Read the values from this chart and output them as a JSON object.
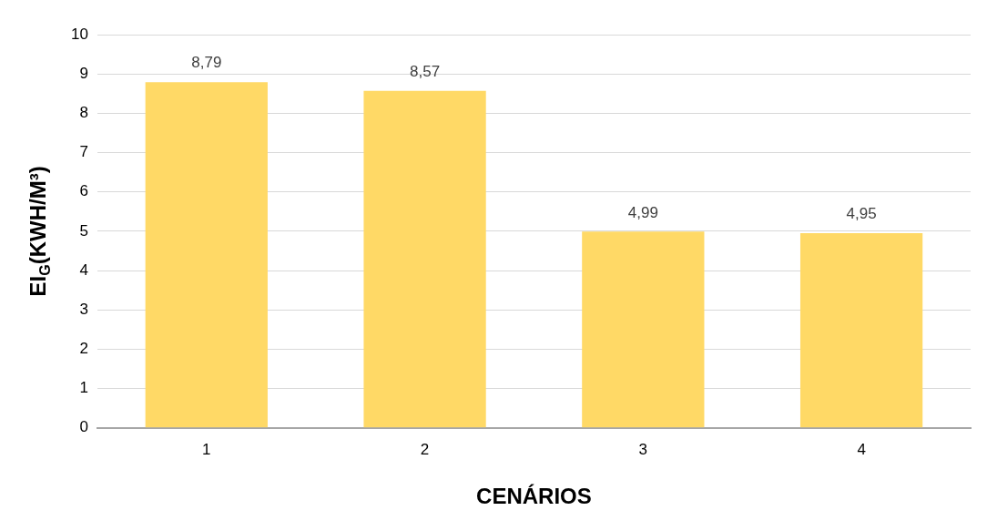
{
  "chart_data": {
    "type": "bar",
    "xlabel": "CENÁRIOS",
    "ylabel": "EI$_{G}$(KWH/M³)",
    "categories": [
      "1",
      "2",
      "3",
      "4"
    ],
    "values": [
      8.79,
      8.57,
      4.99,
      4.95
    ],
    "value_labels": [
      "8,79",
      "8,57",
      "4,99",
      "4,95"
    ],
    "color": "#ffd966",
    "ylim": [
      0,
      10
    ],
    "yticks": [
      0,
      1,
      2,
      3,
      4,
      5,
      6,
      7,
      8,
      9,
      10
    ],
    "grid": "y",
    "legend": false
  }
}
